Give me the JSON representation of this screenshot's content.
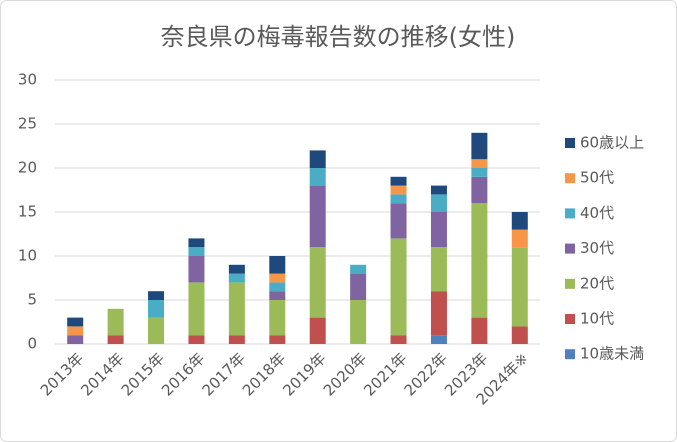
{
  "chart_data": {
    "type": "stacked-bar",
    "title": "奈良県の梅毒報告数の推移(女性)",
    "categories": [
      "2013年",
      "2014年",
      "2015年",
      "2016年",
      "2017年",
      "2018年",
      "2019年",
      "2020年",
      "2021年",
      "2022年",
      "2023年",
      "2024年※"
    ],
    "series": [
      {
        "name": "10歳未満",
        "color": "#4f81bd",
        "values": [
          0,
          0,
          0,
          0,
          0,
          0,
          0,
          0,
          0,
          1,
          0,
          0
        ]
      },
      {
        "name": "10代",
        "color": "#c0504d",
        "values": [
          0,
          1,
          0,
          1,
          1,
          1,
          3,
          0,
          1,
          5,
          3,
          2
        ]
      },
      {
        "name": "20代",
        "color": "#9bbb59",
        "values": [
          0,
          3,
          3,
          6,
          6,
          4,
          8,
          5,
          11,
          5,
          13,
          9
        ]
      },
      {
        "name": "30代",
        "color": "#8064a2",
        "values": [
          1,
          0,
          0,
          3,
          0,
          1,
          7,
          3,
          4,
          4,
          3,
          0
        ]
      },
      {
        "name": "40代",
        "color": "#4bacc6",
        "values": [
          0,
          0,
          2,
          1,
          1,
          1,
          2,
          1,
          1,
          2,
          1,
          0
        ]
      },
      {
        "name": "50代",
        "color": "#f79646",
        "values": [
          1,
          0,
          0,
          0,
          0,
          1,
          0,
          0,
          1,
          0,
          1,
          2
        ]
      },
      {
        "name": "60歳以上",
        "color": "#1f497d",
        "values": [
          1,
          0,
          1,
          1,
          1,
          2,
          2,
          0,
          1,
          1,
          3,
          2
        ]
      }
    ],
    "ylim": [
      0,
      30
    ],
    "yticks": [
      0,
      5,
      10,
      15,
      20,
      25,
      30
    ],
    "grid": true,
    "legend": "right"
  }
}
